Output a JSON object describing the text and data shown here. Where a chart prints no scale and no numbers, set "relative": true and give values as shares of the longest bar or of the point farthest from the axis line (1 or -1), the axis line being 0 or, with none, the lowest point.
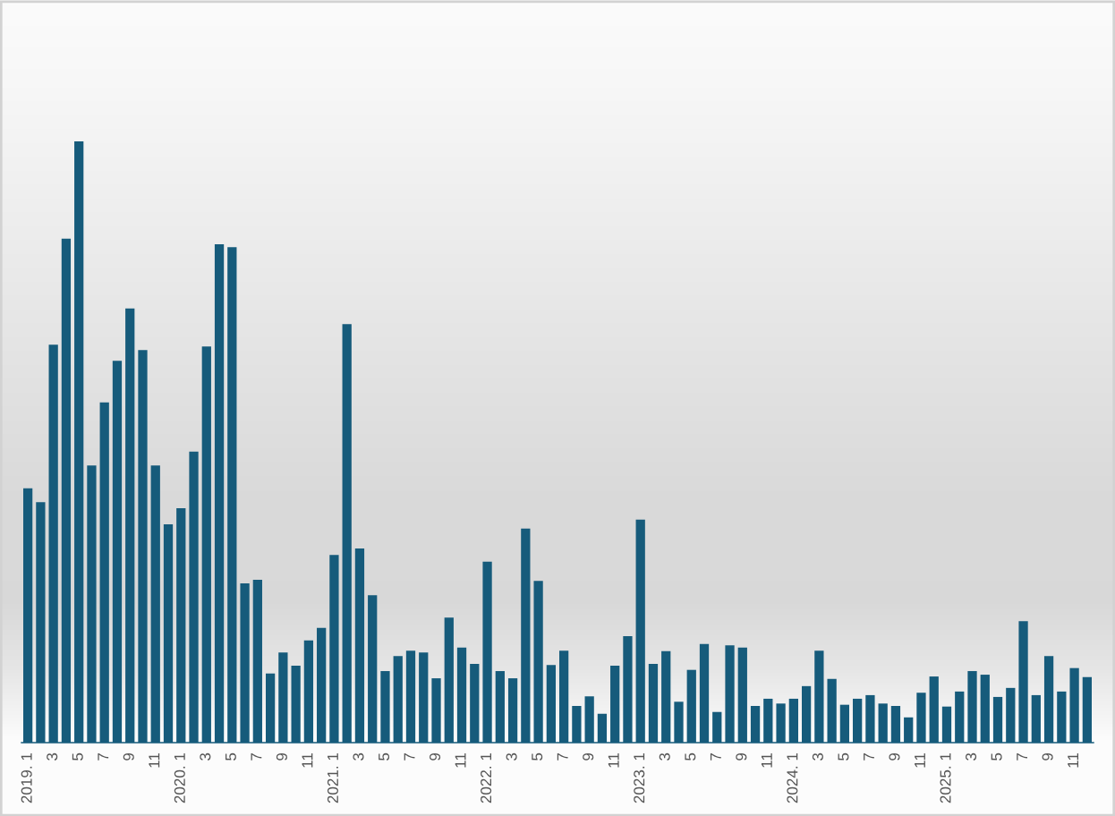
{
  "chart_data": {
    "type": "bar",
    "relative": true,
    "categories": [
      "2019. 1",
      null,
      "3",
      null,
      "5",
      null,
      "7",
      null,
      "9",
      null,
      "11",
      null,
      "2020. 1",
      null,
      "3",
      null,
      "5",
      null,
      "7",
      null,
      "9",
      null,
      "11",
      null,
      "2021. 1",
      null,
      "3",
      null,
      "5",
      null,
      "7",
      null,
      "9",
      null,
      "11",
      null,
      "2022. 1",
      null,
      "3",
      null,
      "5",
      null,
      "7",
      null,
      "9",
      null,
      "11",
      null,
      "2023. 1",
      null,
      "3",
      null,
      "5",
      null,
      "7",
      null,
      "9",
      null,
      "11",
      null,
      "2024. 1",
      null,
      "3",
      null,
      "5",
      null,
      "7",
      null,
      "9",
      null,
      "11",
      null,
      "2025. 1",
      null,
      "3",
      null,
      "5",
      null,
      "7",
      null,
      "9",
      null,
      "11",
      null
    ],
    "values": [
      0.423,
      0.4,
      0.662,
      0.838,
      1,
      0.461,
      0.566,
      0.635,
      0.722,
      0.653,
      0.461,
      0.363,
      0.39,
      0.484,
      0.659,
      0.829,
      0.824,
      0.265,
      0.271,
      0.115,
      0.15,
      0.128,
      0.17,
      0.191,
      0.312,
      0.696,
      0.323,
      0.245,
      0.119,
      0.144,
      0.153,
      0.15,
      0.107,
      0.208,
      0.158,
      0.131,
      0.301,
      0.119,
      0.107,
      0.356,
      0.269,
      0.129,
      0.153,
      0.061,
      0.077,
      0.048,
      0.128,
      0.177,
      0.371,
      0.131,
      0.152,
      0.068,
      0.121,
      0.164,
      0.051,
      0.162,
      0.158,
      0.061,
      0.073,
      0.065,
      0.073,
      0.094,
      0.153,
      0.106,
      0.063,
      0.073,
      0.079,
      0.065,
      0.061,
      0.042,
      0.083,
      0.11,
      0.06,
      0.085,
      0.119,
      0.113,
      0.076,
      0.091,
      0.202,
      0.079,
      0.144,
      0.085,
      0.124,
      0.109
    ],
    "color": "#165b7b"
  }
}
